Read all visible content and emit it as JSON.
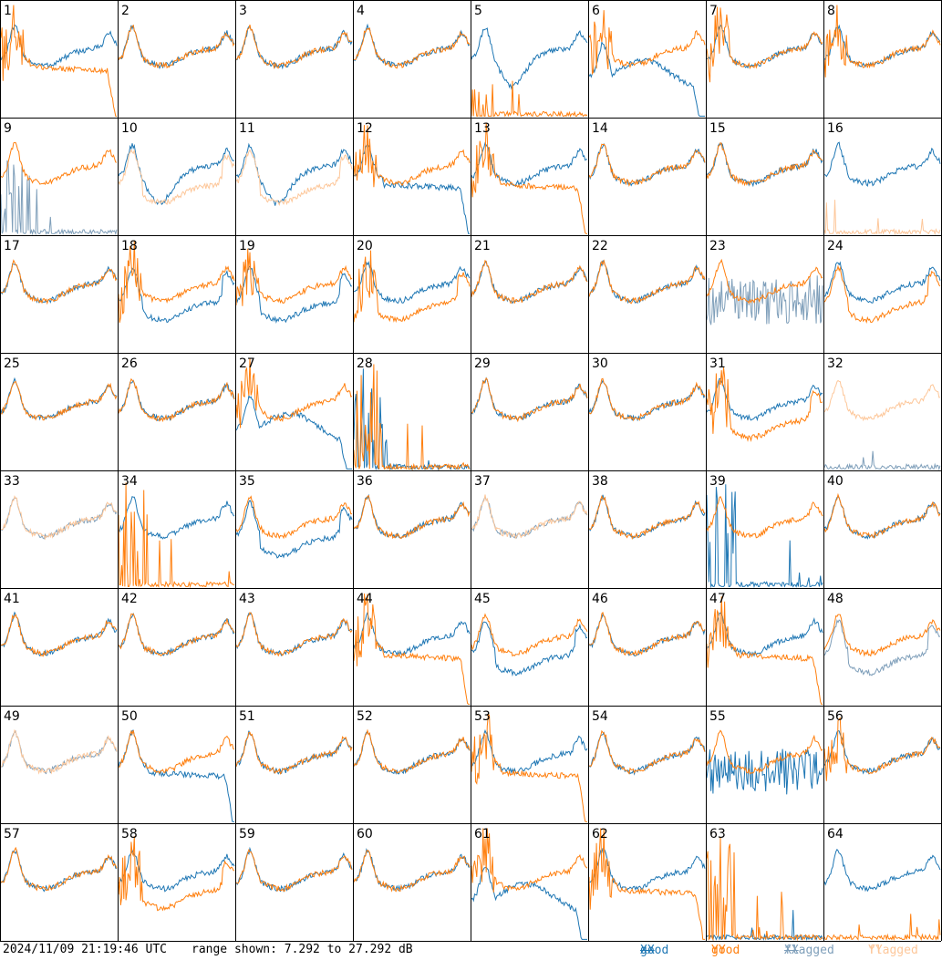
{
  "footer": {
    "timestamp": "2024/11/09 21:19:46 UTC",
    "range": "range shown: 7.292 to 27.292 dB"
  },
  "legend": {
    "good_xx": {
      "word": "good",
      "pol": "XX",
      "color": "#1f77b4"
    },
    "good_yy": {
      "word": "good",
      "pol": "YY",
      "color": "#ff7f0e"
    },
    "flagged_xx": {
      "word": "flagged",
      "pol": "XX",
      "color": "#7f9fba"
    },
    "flagged_yy": {
      "word": "flagged",
      "pol": "YY",
      "color": "#fdc79a"
    }
  },
  "chart_data": {
    "type": "line",
    "layout": "8x8 small multiples",
    "units": "dB",
    "y_range": [
      7.292,
      27.292
    ],
    "panels": [
      {
        "n": 1,
        "xx": {
          "t": "g",
          "s": "A"
        },
        "yy": {
          "t": "g",
          "s": "L",
          "n": 1
        }
      },
      {
        "n": 2,
        "xx": {
          "t": "g",
          "s": "A"
        },
        "yy": {
          "t": "g",
          "s": "A"
        }
      },
      {
        "n": 3,
        "xx": {
          "t": "g",
          "s": "A"
        },
        "yy": {
          "t": "g",
          "s": "A"
        }
      },
      {
        "n": 4,
        "xx": {
          "t": "g",
          "s": "A"
        },
        "yy": {
          "t": "g",
          "s": "A"
        }
      },
      {
        "n": 5,
        "xx": {
          "t": "g",
          "s": "B"
        },
        "yy": {
          "t": "g",
          "s": "F",
          "n": 1
        }
      },
      {
        "n": 6,
        "xx": {
          "t": "g",
          "s": "D"
        },
        "yy": {
          "t": "g",
          "s": "A",
          "n": 1
        }
      },
      {
        "n": 7,
        "xx": {
          "t": "g",
          "s": "A"
        },
        "yy": {
          "t": "g",
          "s": "A",
          "n": 1
        }
      },
      {
        "n": 8,
        "xx": {
          "t": "g",
          "s": "A"
        },
        "yy": {
          "t": "g",
          "s": "A",
          "n": 1
        }
      },
      {
        "n": 9,
        "xx": {
          "t": "f",
          "s": "S"
        },
        "yy": {
          "t": "g",
          "s": "A"
        }
      },
      {
        "n": 10,
        "xx": {
          "t": "g",
          "s": "B"
        },
        "yy": {
          "t": "f",
          "s": "C"
        }
      },
      {
        "n": 11,
        "xx": {
          "t": "g",
          "s": "B"
        },
        "yy": {
          "t": "f",
          "s": "C"
        }
      },
      {
        "n": 12,
        "xx": {
          "t": "g",
          "s": "L"
        },
        "yy": {
          "t": "g",
          "s": "A",
          "n": 1
        }
      },
      {
        "n": 13,
        "xx": {
          "t": "g",
          "s": "A"
        },
        "yy": {
          "t": "g",
          "s": "L",
          "n": 1
        }
      },
      {
        "n": 14,
        "xx": {
          "t": "g",
          "s": "A"
        },
        "yy": {
          "t": "g",
          "s": "A"
        }
      },
      {
        "n": 15,
        "xx": {
          "t": "g",
          "s": "A"
        },
        "yy": {
          "t": "g",
          "s": "A"
        }
      },
      {
        "n": 16,
        "xx": {
          "t": "g",
          "s": "A"
        },
        "yy": {
          "t": "f",
          "s": "F"
        }
      },
      {
        "n": 17,
        "xx": {
          "t": "g",
          "s": "A"
        },
        "yy": {
          "t": "g",
          "s": "A"
        }
      },
      {
        "n": 18,
        "xx": {
          "t": "g",
          "s": "C"
        },
        "yy": {
          "t": "g",
          "s": "A",
          "n": 1
        }
      },
      {
        "n": 19,
        "xx": {
          "t": "g",
          "s": "C"
        },
        "yy": {
          "t": "g",
          "s": "A",
          "n": 1
        }
      },
      {
        "n": 20,
        "xx": {
          "t": "g",
          "s": "A"
        },
        "yy": {
          "t": "g",
          "s": "C",
          "n": 1
        }
      },
      {
        "n": 21,
        "xx": {
          "t": "g",
          "s": "A"
        },
        "yy": {
          "t": "g",
          "s": "A"
        }
      },
      {
        "n": 22,
        "xx": {
          "t": "g",
          "s": "A"
        },
        "yy": {
          "t": "g",
          "s": "A"
        }
      },
      {
        "n": 23,
        "xx": {
          "t": "f",
          "s": "N"
        },
        "yy": {
          "t": "g",
          "s": "A"
        }
      },
      {
        "n": 24,
        "xx": {
          "t": "g",
          "s": "A"
        },
        "yy": {
          "t": "g",
          "s": "C"
        }
      },
      {
        "n": 25,
        "xx": {
          "t": "g",
          "s": "A"
        },
        "yy": {
          "t": "g",
          "s": "A"
        }
      },
      {
        "n": 26,
        "xx": {
          "t": "g",
          "s": "A"
        },
        "yy": {
          "t": "g",
          "s": "A"
        }
      },
      {
        "n": 27,
        "xx": {
          "t": "g",
          "s": "D"
        },
        "yy": {
          "t": "g",
          "s": "A",
          "n": 1
        }
      },
      {
        "n": 28,
        "xx": {
          "t": "g",
          "s": "S"
        },
        "yy": {
          "t": "g",
          "s": "S"
        }
      },
      {
        "n": 29,
        "xx": {
          "t": "g",
          "s": "A"
        },
        "yy": {
          "t": "g",
          "s": "A"
        }
      },
      {
        "n": 30,
        "xx": {
          "t": "g",
          "s": "A"
        },
        "yy": {
          "t": "g",
          "s": "A"
        }
      },
      {
        "n": 31,
        "xx": {
          "t": "g",
          "s": "A"
        },
        "yy": {
          "t": "g",
          "s": "C",
          "n": 1
        }
      },
      {
        "n": 32,
        "xx": {
          "t": "f",
          "s": "F"
        },
        "yy": {
          "t": "f",
          "s": "A"
        }
      },
      {
        "n": 33,
        "xx": {
          "t": "f",
          "s": "A"
        },
        "yy": {
          "t": "f",
          "s": "A"
        }
      },
      {
        "n": 34,
        "xx": {
          "t": "g",
          "s": "A"
        },
        "yy": {
          "t": "g",
          "s": "S"
        }
      },
      {
        "n": 35,
        "xx": {
          "t": "g",
          "s": "C"
        },
        "yy": {
          "t": "g",
          "s": "A"
        }
      },
      {
        "n": 36,
        "xx": {
          "t": "g",
          "s": "A"
        },
        "yy": {
          "t": "g",
          "s": "A"
        }
      },
      {
        "n": 37,
        "xx": {
          "t": "f",
          "s": "A"
        },
        "yy": {
          "t": "f",
          "s": "A"
        }
      },
      {
        "n": 38,
        "xx": {
          "t": "g",
          "s": "A"
        },
        "yy": {
          "t": "g",
          "s": "A"
        }
      },
      {
        "n": 39,
        "xx": {
          "t": "g",
          "s": "S"
        },
        "yy": {
          "t": "g",
          "s": "A"
        }
      },
      {
        "n": 40,
        "xx": {
          "t": "g",
          "s": "A"
        },
        "yy": {
          "t": "g",
          "s": "A"
        }
      },
      {
        "n": 41,
        "xx": {
          "t": "g",
          "s": "A"
        },
        "yy": {
          "t": "g",
          "s": "A"
        }
      },
      {
        "n": 42,
        "xx": {
          "t": "g",
          "s": "A"
        },
        "yy": {
          "t": "g",
          "s": "A"
        }
      },
      {
        "n": 43,
        "xx": {
          "t": "g",
          "s": "A"
        },
        "yy": {
          "t": "g",
          "s": "A"
        }
      },
      {
        "n": 44,
        "xx": {
          "t": "g",
          "s": "A"
        },
        "yy": {
          "t": "g",
          "s": "L",
          "n": 1
        }
      },
      {
        "n": 45,
        "xx": {
          "t": "g",
          "s": "C"
        },
        "yy": {
          "t": "g",
          "s": "A"
        }
      },
      {
        "n": 46,
        "xx": {
          "t": "g",
          "s": "A"
        },
        "yy": {
          "t": "g",
          "s": "A"
        }
      },
      {
        "n": 47,
        "xx": {
          "t": "g",
          "s": "A"
        },
        "yy": {
          "t": "g",
          "s": "L",
          "n": 1
        }
      },
      {
        "n": 48,
        "xx": {
          "t": "f",
          "s": "C"
        },
        "yy": {
          "t": "g",
          "s": "A"
        }
      },
      {
        "n": 49,
        "xx": {
          "t": "f",
          "s": "A"
        },
        "yy": {
          "t": "f",
          "s": "A"
        }
      },
      {
        "n": 50,
        "xx": {
          "t": "g",
          "s": "L"
        },
        "yy": {
          "t": "g",
          "s": "A"
        }
      },
      {
        "n": 51,
        "xx": {
          "t": "g",
          "s": "A"
        },
        "yy": {
          "t": "g",
          "s": "A"
        }
      },
      {
        "n": 52,
        "xx": {
          "t": "g",
          "s": "A"
        },
        "yy": {
          "t": "g",
          "s": "A"
        }
      },
      {
        "n": 53,
        "xx": {
          "t": "g",
          "s": "A"
        },
        "yy": {
          "t": "g",
          "s": "L",
          "n": 1
        }
      },
      {
        "n": 54,
        "xx": {
          "t": "g",
          "s": "A"
        },
        "yy": {
          "t": "g",
          "s": "A"
        }
      },
      {
        "n": 55,
        "xx": {
          "t": "g",
          "s": "N"
        },
        "yy": {
          "t": "g",
          "s": "A"
        }
      },
      {
        "n": 56,
        "xx": {
          "t": "g",
          "s": "A"
        },
        "yy": {
          "t": "g",
          "s": "A",
          "n": 1
        }
      },
      {
        "n": 57,
        "xx": {
          "t": "g",
          "s": "A"
        },
        "yy": {
          "t": "g",
          "s": "A"
        }
      },
      {
        "n": 58,
        "xx": {
          "t": "g",
          "s": "A"
        },
        "yy": {
          "t": "g",
          "s": "C",
          "n": 1
        }
      },
      {
        "n": 59,
        "xx": {
          "t": "g",
          "s": "A"
        },
        "yy": {
          "t": "g",
          "s": "A"
        }
      },
      {
        "n": 60,
        "xx": {
          "t": "g",
          "s": "A"
        },
        "yy": {
          "t": "g",
          "s": "A"
        }
      },
      {
        "n": 61,
        "xx": {
          "t": "g",
          "s": "D"
        },
        "yy": {
          "t": "g",
          "s": "A",
          "n": 1
        }
      },
      {
        "n": 62,
        "xx": {
          "t": "g",
          "s": "A"
        },
        "yy": {
          "t": "g",
          "s": "L",
          "n": 1
        }
      },
      {
        "n": 63,
        "xx": {
          "t": "g",
          "s": "F"
        },
        "yy": {
          "t": "g",
          "s": "S"
        }
      },
      {
        "n": 64,
        "xx": {
          "t": "g",
          "s": "A"
        },
        "yy": {
          "t": "g",
          "s": "F"
        }
      }
    ]
  }
}
